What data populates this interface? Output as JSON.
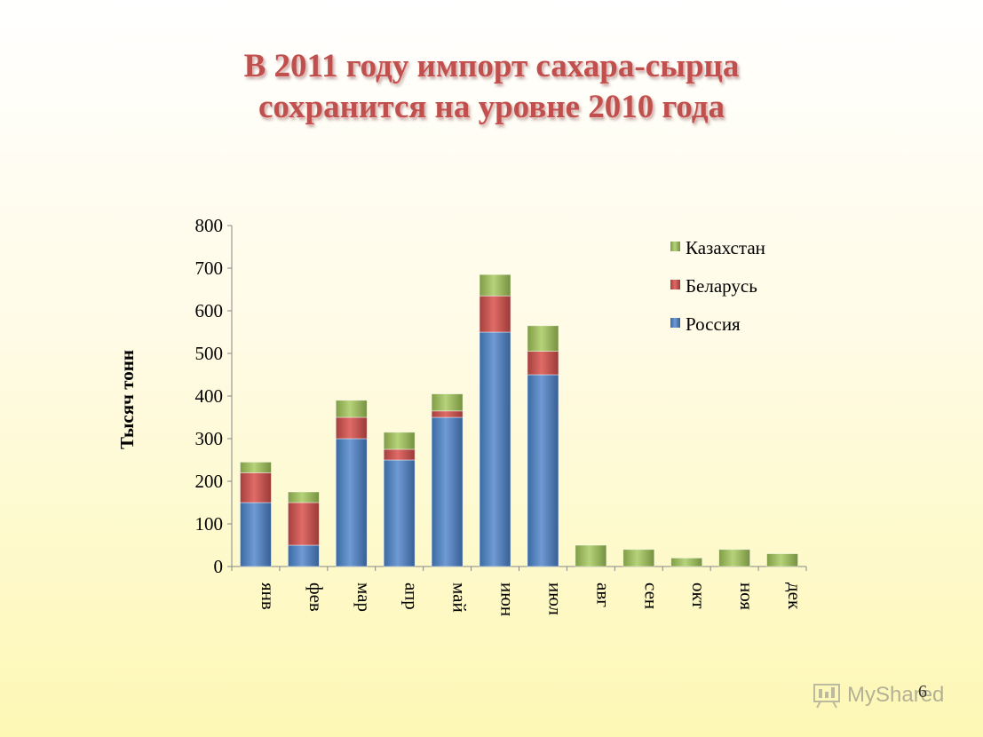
{
  "slide": {
    "title_line1": "В 2011 году импорт сахара-сырца",
    "title_line2": "сохранится на уровне 2010 года",
    "page_number": "6",
    "watermark": "MyShared"
  },
  "colors": {
    "russia": "#4f81bd",
    "belarus": "#c0504d",
    "kazakhstan": "#9bbb59",
    "title": "#c0504d"
  },
  "chart_data": {
    "type": "bar",
    "stacked": true,
    "title": "",
    "ylabel": "Тысяч тонн",
    "xlabel": "",
    "ylim": [
      0,
      800
    ],
    "yticks": [
      0,
      100,
      200,
      300,
      400,
      500,
      600,
      700,
      800
    ],
    "grid": false,
    "legend_position": "top-right",
    "categories": [
      "янв",
      "фев",
      "мар",
      "апр",
      "май",
      "июн",
      "июл",
      "авг",
      "сен",
      "окт",
      "ноя",
      "дек"
    ],
    "series": [
      {
        "name": "Россия",
        "color": "#4f81bd",
        "values": [
          150,
          50,
          300,
          250,
          350,
          550,
          450,
          0,
          0,
          0,
          0,
          0
        ]
      },
      {
        "name": "Беларусь",
        "color": "#c0504d",
        "values": [
          70,
          100,
          50,
          25,
          15,
          85,
          55,
          0,
          0,
          0,
          0,
          0
        ]
      },
      {
        "name": "Казахстан",
        "color": "#9bbb59",
        "values": [
          25,
          25,
          40,
          40,
          40,
          50,
          60,
          50,
          40,
          20,
          40,
          30
        ]
      }
    ]
  }
}
